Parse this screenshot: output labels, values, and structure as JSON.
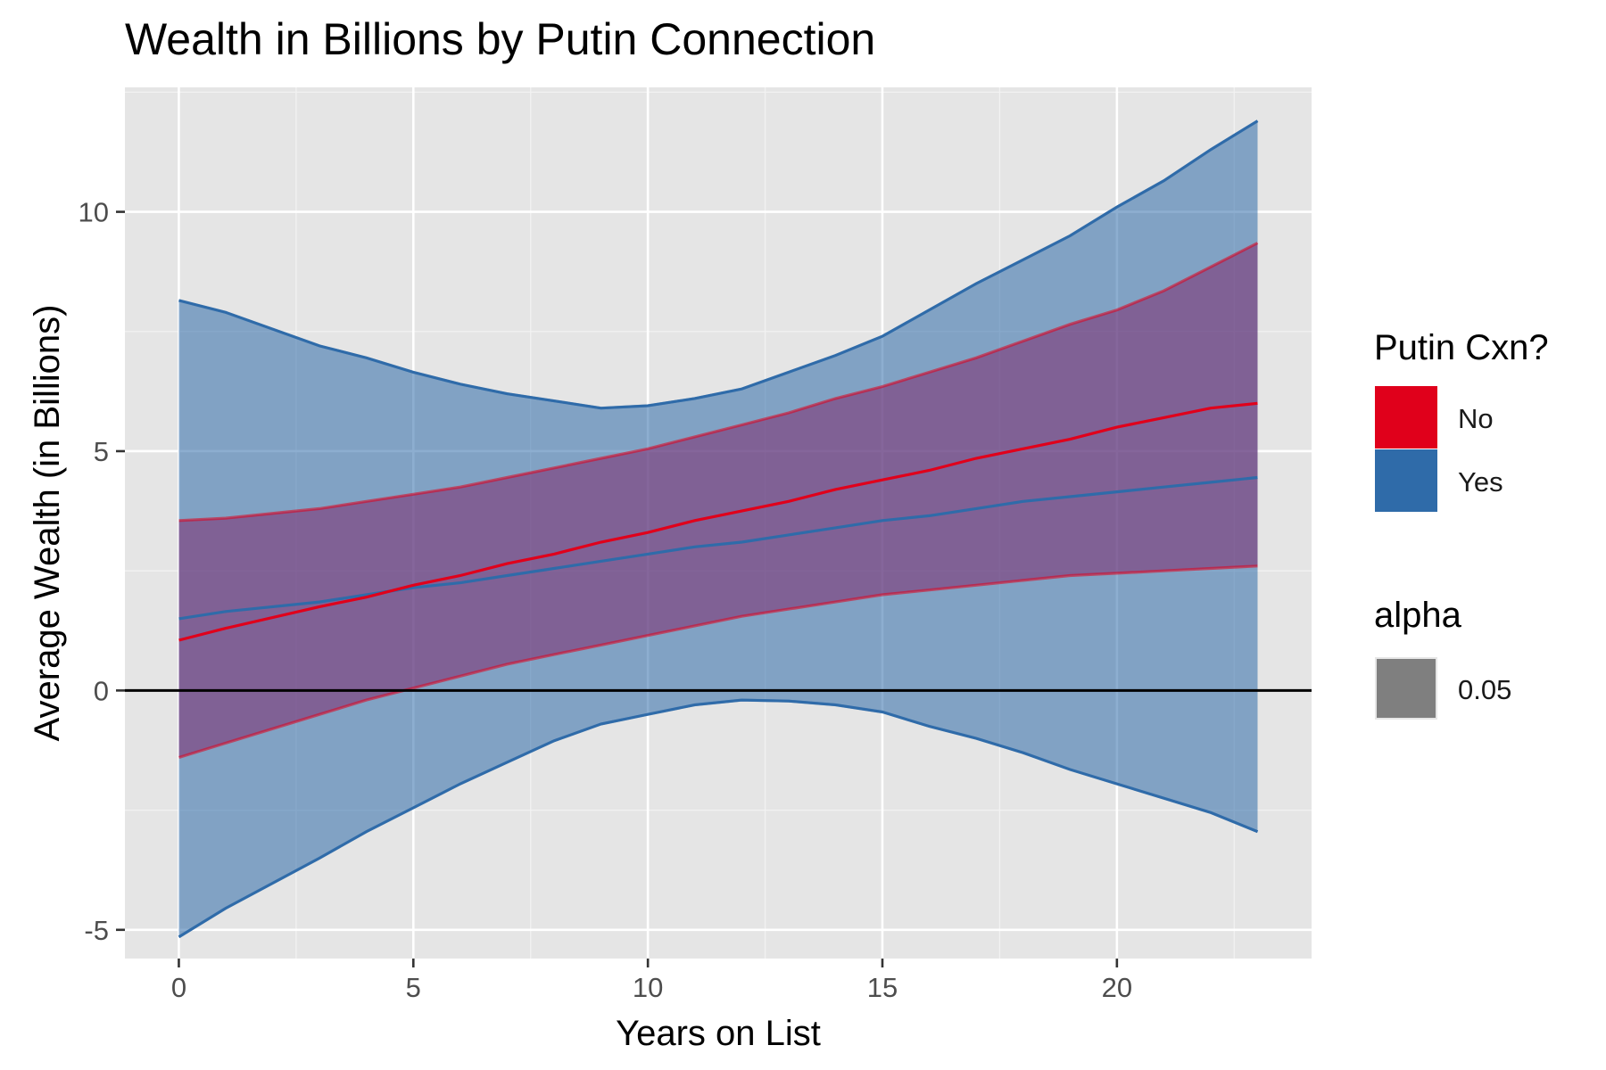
{
  "chart_data": {
    "type": "line",
    "title": "Wealth in Billions by Putin Connection",
    "xlabel": "Years on List",
    "ylabel": "Average Wealth (in Billions)",
    "xlim": [
      -1.15,
      24.15
    ],
    "ylim": [
      -5.6,
      12.6
    ],
    "xticks": [
      0,
      5,
      10,
      15,
      20
    ],
    "xtick_labels": [
      "0",
      "5",
      "10",
      "15",
      "20"
    ],
    "yticks": [
      -5,
      0,
      5,
      10
    ],
    "ytick_labels": [
      "-5",
      "0",
      "5",
      "10"
    ],
    "grid": true,
    "reference_line": {
      "y": 0
    },
    "legend": {
      "placement": "right",
      "groups": [
        {
          "title": "Putin Cxn?",
          "entries": [
            {
              "label": "No",
              "color": "#e0001b"
            },
            {
              "label": "Yes",
              "color": "#2f6ba9"
            }
          ]
        },
        {
          "title": "alpha",
          "entries": [
            {
              "label": "0.05",
              "color": "#7f7f7f"
            }
          ]
        }
      ]
    },
    "series": [
      {
        "name": "Yes",
        "color": "#2f6ba9",
        "fill": "#2f6ba9",
        "fill_opacity": 0.55,
        "x": [
          0,
          1,
          3,
          4,
          5,
          6,
          7,
          8,
          9,
          10,
          11,
          12,
          13,
          14,
          15,
          16,
          17,
          18,
          19,
          20,
          21,
          22,
          23
        ],
        "fit": [
          1.5,
          1.65,
          1.85,
          2.0,
          2.15,
          2.25,
          2.4,
          2.55,
          2.7,
          2.85,
          3.0,
          3.1,
          3.25,
          3.4,
          3.55,
          3.65,
          3.8,
          3.95,
          4.05,
          4.15,
          4.25,
          4.35,
          4.45
        ],
        "upper": [
          8.15,
          7.9,
          7.2,
          6.95,
          6.65,
          6.4,
          6.2,
          6.05,
          5.9,
          5.95,
          6.1,
          6.3,
          6.65,
          7.0,
          7.4,
          7.95,
          8.5,
          9.0,
          9.5,
          10.1,
          10.65,
          11.3,
          11.9
        ],
        "lower": [
          -5.15,
          -4.55,
          -3.5,
          -2.95,
          -2.45,
          -1.95,
          -1.5,
          -1.05,
          -0.7,
          -0.5,
          -0.3,
          -0.2,
          -0.22,
          -0.3,
          -0.45,
          -0.75,
          -1.0,
          -1.3,
          -1.65,
          -1.95,
          -2.25,
          -2.55,
          -2.95
        ]
      },
      {
        "name": "No",
        "color": "#e0001b",
        "fill": "#7f2b6f",
        "fill_opacity": 0.55,
        "x": [
          0,
          1,
          3,
          4,
          5,
          6,
          7,
          8,
          9,
          10,
          11,
          12,
          13,
          14,
          15,
          16,
          17,
          18,
          19,
          20,
          21,
          22,
          23
        ],
        "fit": [
          1.05,
          1.3,
          1.75,
          1.95,
          2.2,
          2.4,
          2.65,
          2.85,
          3.1,
          3.3,
          3.55,
          3.75,
          3.95,
          4.2,
          4.4,
          4.6,
          4.85,
          5.05,
          5.25,
          5.5,
          5.7,
          5.9,
          6.0
        ],
        "upper": [
          3.55,
          3.6,
          3.8,
          3.95,
          4.1,
          4.25,
          4.45,
          4.65,
          4.85,
          5.05,
          5.3,
          5.55,
          5.8,
          6.1,
          6.35,
          6.65,
          6.95,
          7.3,
          7.65,
          7.95,
          8.35,
          8.85,
          9.35
        ],
        "lower": [
          -1.4,
          -1.1,
          -0.5,
          -0.2,
          0.05,
          0.3,
          0.55,
          0.75,
          0.95,
          1.15,
          1.35,
          1.55,
          1.7,
          1.85,
          2.0,
          2.1,
          2.2,
          2.3,
          2.4,
          2.45,
          2.5,
          2.55,
          2.6
        ]
      }
    ]
  }
}
